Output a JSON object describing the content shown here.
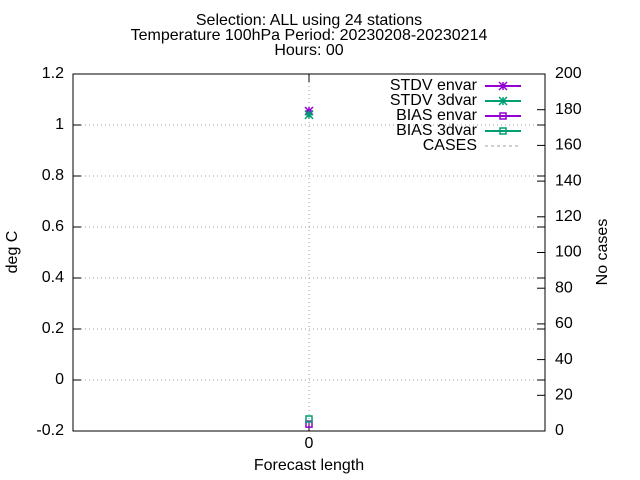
{
  "chart_data": {
    "type": "line",
    "title_lines": [
      "Selection: ALL using    24 stations",
      "Temperature 100hPa   Period: 20230208-20230214",
      "Hours: 00"
    ],
    "x_label": "Forecast length",
    "y_label": "deg C",
    "y2_label": "No cases",
    "x": [
      0
    ],
    "xlim": [
      -1,
      1
    ],
    "xticks": [
      0
    ],
    "ylim": [
      -0.2,
      1.2
    ],
    "yticks": [
      -0.2,
      0,
      0.2,
      0.4,
      0.6,
      0.8,
      1,
      1.2
    ],
    "y2lim": [
      0,
      200
    ],
    "y2ticks": [
      0,
      20,
      40,
      60,
      80,
      100,
      120,
      140,
      160,
      180,
      200
    ],
    "grid": true,
    "legend": "top-right",
    "series": [
      {
        "name": "STDV envar",
        "color": "#9400d3",
        "marker": "star",
        "values": [
          1.055
        ]
      },
      {
        "name": "STDV 3dvar",
        "color": "#009e73",
        "marker": "star",
        "values": [
          1.04
        ]
      },
      {
        "name": "BIAS envar",
        "color": "#9400d3",
        "marker": "square",
        "values": [
          -0.173
        ]
      },
      {
        "name": "BIAS 3dvar",
        "color": "#009e73",
        "marker": "square",
        "values": [
          -0.153
        ]
      },
      {
        "name": "CASES",
        "color": "#a0a0a0",
        "marker": "none",
        "dashed": true,
        "axis": "y2",
        "values": [
          null
        ]
      }
    ]
  }
}
